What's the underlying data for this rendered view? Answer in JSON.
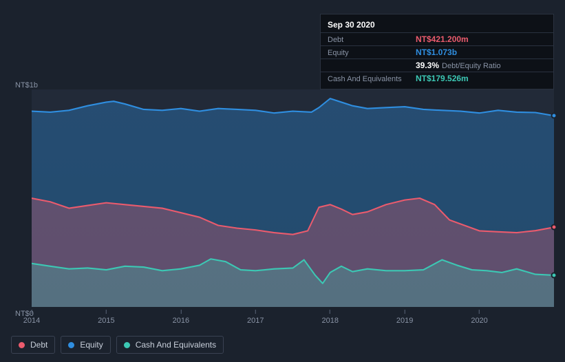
{
  "tooltip": {
    "date": "Sep 30 2020",
    "rows": [
      {
        "label": "Debt",
        "value": "NT$421.200m",
        "color": "#eb5b6d"
      },
      {
        "label": "Equity",
        "value": "NT$1.073b",
        "color": "#2f8ee0"
      },
      {
        "label": "",
        "value": "39.3%",
        "suffix": "Debt/Equity Ratio",
        "color": "#ffffff"
      },
      {
        "label": "Cash And Equivalents",
        "value": "NT$179.526m",
        "color": "#3cc8b4"
      }
    ]
  },
  "chart": {
    "type": "area",
    "background_top": "#222a38",
    "background_bottom": "#1e2632",
    "y_max_label": "NT$1b",
    "y_min_label": "NT$0",
    "x_ticks": [
      "2014",
      "2015",
      "2016",
      "2017",
      "2018",
      "2019",
      "2020"
    ],
    "x_domain": [
      2014,
      2021
    ],
    "y_domain": [
      0,
      1200
    ],
    "series": [
      {
        "name": "Equity",
        "color": "#2f8ee0",
        "fill": "rgba(47,142,224,0.35)",
        "points": [
          [
            2014.0,
            1080
          ],
          [
            2014.25,
            1075
          ],
          [
            2014.5,
            1085
          ],
          [
            2014.75,
            1110
          ],
          [
            2015.0,
            1130
          ],
          [
            2015.1,
            1135
          ],
          [
            2015.25,
            1120
          ],
          [
            2015.5,
            1090
          ],
          [
            2015.75,
            1085
          ],
          [
            2016.0,
            1095
          ],
          [
            2016.25,
            1080
          ],
          [
            2016.5,
            1095
          ],
          [
            2016.75,
            1090
          ],
          [
            2017.0,
            1085
          ],
          [
            2017.25,
            1070
          ],
          [
            2017.5,
            1080
          ],
          [
            2017.75,
            1075
          ],
          [
            2017.85,
            1100
          ],
          [
            2018.0,
            1150
          ],
          [
            2018.15,
            1130
          ],
          [
            2018.3,
            1110
          ],
          [
            2018.5,
            1095
          ],
          [
            2018.75,
            1100
          ],
          [
            2019.0,
            1105
          ],
          [
            2019.25,
            1090
          ],
          [
            2019.5,
            1085
          ],
          [
            2019.75,
            1080
          ],
          [
            2020.0,
            1070
          ],
          [
            2020.25,
            1085
          ],
          [
            2020.5,
            1075
          ],
          [
            2020.75,
            1073
          ],
          [
            2021.0,
            1055
          ]
        ],
        "end_marker": true
      },
      {
        "name": "Debt",
        "color": "#eb5b6d",
        "fill": "rgba(235,91,109,0.30)",
        "points": [
          [
            2014.0,
            600
          ],
          [
            2014.25,
            580
          ],
          [
            2014.5,
            545
          ],
          [
            2014.75,
            560
          ],
          [
            2015.0,
            575
          ],
          [
            2015.25,
            565
          ],
          [
            2015.5,
            555
          ],
          [
            2015.75,
            545
          ],
          [
            2016.0,
            520
          ],
          [
            2016.25,
            495
          ],
          [
            2016.5,
            450
          ],
          [
            2016.75,
            435
          ],
          [
            2017.0,
            425
          ],
          [
            2017.25,
            410
          ],
          [
            2017.5,
            400
          ],
          [
            2017.7,
            420
          ],
          [
            2017.85,
            550
          ],
          [
            2018.0,
            565
          ],
          [
            2018.15,
            540
          ],
          [
            2018.3,
            510
          ],
          [
            2018.5,
            525
          ],
          [
            2018.75,
            565
          ],
          [
            2019.0,
            590
          ],
          [
            2019.2,
            600
          ],
          [
            2019.4,
            565
          ],
          [
            2019.6,
            480
          ],
          [
            2019.8,
            450
          ],
          [
            2020.0,
            420
          ],
          [
            2020.25,
            415
          ],
          [
            2020.5,
            410
          ],
          [
            2020.75,
            421
          ],
          [
            2021.0,
            440
          ]
        ],
        "end_marker": true
      },
      {
        "name": "Cash And Equivalents",
        "color": "#3cc8b4",
        "fill": "rgba(60,200,180,0.28)",
        "points": [
          [
            2014.0,
            240
          ],
          [
            2014.25,
            225
          ],
          [
            2014.5,
            210
          ],
          [
            2014.75,
            215
          ],
          [
            2015.0,
            205
          ],
          [
            2015.25,
            225
          ],
          [
            2015.5,
            220
          ],
          [
            2015.75,
            200
          ],
          [
            2016.0,
            210
          ],
          [
            2016.25,
            230
          ],
          [
            2016.4,
            265
          ],
          [
            2016.6,
            250
          ],
          [
            2016.8,
            205
          ],
          [
            2017.0,
            200
          ],
          [
            2017.25,
            210
          ],
          [
            2017.5,
            215
          ],
          [
            2017.65,
            260
          ],
          [
            2017.8,
            175
          ],
          [
            2017.9,
            130
          ],
          [
            2018.0,
            190
          ],
          [
            2018.15,
            225
          ],
          [
            2018.3,
            195
          ],
          [
            2018.5,
            210
          ],
          [
            2018.75,
            200
          ],
          [
            2019.0,
            200
          ],
          [
            2019.25,
            205
          ],
          [
            2019.5,
            260
          ],
          [
            2019.7,
            230
          ],
          [
            2019.9,
            205
          ],
          [
            2020.1,
            200
          ],
          [
            2020.3,
            190
          ],
          [
            2020.5,
            210
          ],
          [
            2020.75,
            180
          ],
          [
            2021.0,
            175
          ]
        ],
        "end_marker": true
      }
    ]
  },
  "legend": [
    {
      "label": "Debt",
      "color": "#eb5b6d"
    },
    {
      "label": "Equity",
      "color": "#2f8ee0"
    },
    {
      "label": "Cash And Equivalents",
      "color": "#3cc8b4"
    }
  ],
  "colors": {
    "page_bg": "#1b222d",
    "panel_bg": "#0d1117",
    "border": "#2a3240",
    "muted": "#8a94a6",
    "text": "#e0e4e8"
  }
}
